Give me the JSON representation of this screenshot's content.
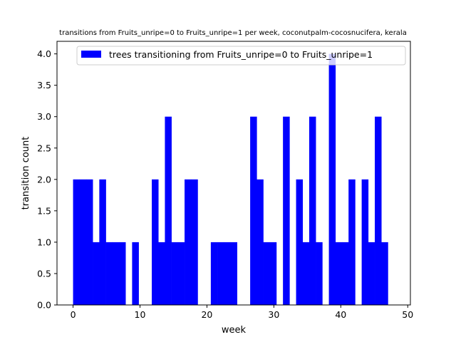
{
  "chart_data": {
    "type": "bar",
    "title": "transitions from Fruits_unripe=0 to Fruits_unripe=1 per week, coconutpalm-cocosnucifera, kerala",
    "xlabel": "week",
    "ylabel": "transition count",
    "xlim": [
      -2.4,
      50.4
    ],
    "ylim": [
      0,
      4.2
    ],
    "xticks": [
      0,
      10,
      20,
      30,
      40,
      50
    ],
    "yticks": [
      0.0,
      0.5,
      1.0,
      1.5,
      2.0,
      2.5,
      3.0,
      3.5,
      4.0
    ],
    "ytick_labels": [
      "0.0",
      "0.5",
      "1.0",
      "1.5",
      "2.0",
      "2.5",
      "3.0",
      "3.5",
      "4.0"
    ],
    "bin_width": 0.98,
    "bin_start": 0,
    "values": [
      2,
      2,
      2,
      1,
      2,
      1,
      1,
      1,
      0,
      1,
      0,
      0,
      2,
      1,
      3,
      1,
      1,
      2,
      2,
      0,
      0,
      1,
      1,
      1,
      1,
      0,
      0,
      3,
      2,
      1,
      1,
      0,
      3,
      0,
      2,
      1,
      3,
      1,
      0,
      4,
      1,
      1,
      2,
      0,
      2,
      1,
      3,
      1
    ],
    "series": [
      {
        "name": "trees transitioning from Fruits_unripe=0 to Fruits_unripe=1",
        "color": "#0000ff"
      }
    ],
    "grid": false,
    "legend_position": "top-right"
  }
}
